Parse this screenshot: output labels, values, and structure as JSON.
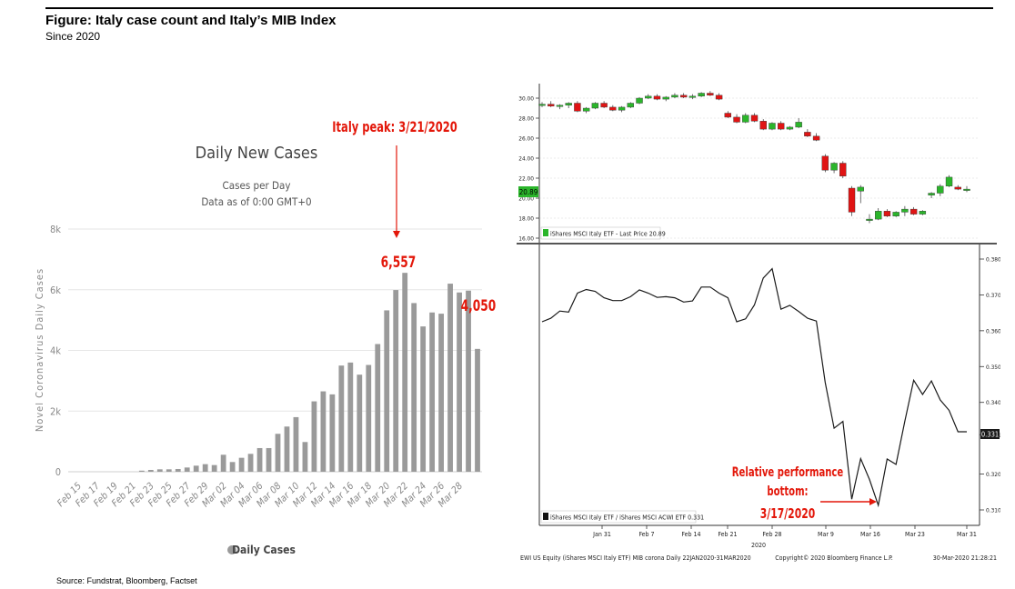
{
  "figure": {
    "title": "Figure: Italy case count and Italy’s MIB Index",
    "subtitle": "Since 2020",
    "source": "Source: Fundstrat, Bloomberg, Factset"
  },
  "chart_data": [
    {
      "type": "bar",
      "title": "Daily New Cases",
      "subtitle_lines": [
        "Cases per Day",
        "Data as of 0:00 GMT+0"
      ],
      "ylabel": "Novel Coronavirus Daily Cases",
      "ylim": [
        0,
        8000
      ],
      "y_ticks": [
        "0",
        "2k",
        "4k",
        "6k",
        "8k"
      ],
      "x_tick_labels": [
        "Feb 15",
        "Feb 17",
        "Feb 19",
        "Feb 21",
        "Feb 23",
        "Feb 25",
        "Feb 27",
        "Feb 29",
        "Mar 02",
        "Mar 04",
        "Mar 06",
        "Mar 08",
        "Mar 10",
        "Mar 12",
        "Mar 14",
        "Mar 16",
        "Mar 18",
        "Mar 20",
        "Mar 22",
        "Mar 24",
        "Mar 26",
        "Mar 28"
      ],
      "legend": "Daily Cases",
      "series": [
        {
          "name": "Daily Cases",
          "color": "#9a9a9a",
          "values": [
            0,
            0,
            0,
            0,
            0,
            0,
            0,
            20,
            60,
            80,
            80,
            90,
            140,
            200,
            250,
            220,
            560,
            320,
            460,
            590,
            780,
            780,
            1250,
            1490,
            1800,
            980,
            2320,
            2650,
            2550,
            3500,
            3600,
            3200,
            3520,
            4210,
            5320,
            5990,
            6557,
            5560,
            4790,
            5250,
            5210,
            6200,
            5910,
            5970,
            4050
          ]
        }
      ],
      "annotations": [
        {
          "text": "Italy peak: 3/21/2020",
          "color": "#e3170a"
        },
        {
          "text": "6,557",
          "color": "#e3170a"
        },
        {
          "text": "4,050",
          "color": "#e3170a"
        }
      ]
    },
    {
      "type": "candlestick",
      "y_ticks": [
        "30.00",
        "28.00",
        "26.00",
        "24.00",
        "22.00",
        "20.00",
        "18.00",
        "16.00"
      ],
      "ylim": [
        16,
        31
      ],
      "last_price_label": "20.89",
      "legend": "iShares MSCI Italy ETF - Last Price 20.89",
      "series": [
        {
          "name": "iShares MSCI Italy ETF",
          "up_color": "#2bb52b",
          "down_color": "#e01414",
          "ohlc": [
            [
              29.3,
              29.6,
              29.1,
              29.4
            ],
            [
              29.4,
              29.7,
              29.1,
              29.2
            ],
            [
              29.2,
              29.4,
              28.9,
              29.3
            ],
            [
              29.3,
              29.6,
              29.0,
              29.5
            ],
            [
              29.5,
              29.7,
              28.6,
              28.7
            ],
            [
              28.7,
              29.1,
              28.5,
              29.0
            ],
            [
              29.0,
              29.6,
              28.9,
              29.5
            ],
            [
              29.5,
              29.7,
              29.0,
              29.1
            ],
            [
              29.1,
              29.3,
              28.7,
              28.8
            ],
            [
              28.8,
              29.2,
              28.6,
              29.1
            ],
            [
              29.1,
              29.6,
              29.0,
              29.5
            ],
            [
              29.5,
              30.1,
              29.4,
              30.0
            ],
            [
              30.0,
              30.4,
              29.9,
              30.2
            ],
            [
              30.2,
              30.4,
              29.8,
              29.9
            ],
            [
              29.9,
              30.2,
              29.7,
              30.1
            ],
            [
              30.1,
              30.5,
              30.0,
              30.3
            ],
            [
              30.3,
              30.5,
              30.0,
              30.1
            ],
            [
              30.1,
              30.4,
              29.9,
              30.2
            ],
            [
              30.2,
              30.6,
              30.1,
              30.5
            ],
            [
              30.5,
              30.7,
              30.2,
              30.3
            ],
            [
              30.3,
              30.5,
              29.8,
              29.9
            ],
            [
              28.5,
              28.7,
              28.0,
              28.1
            ],
            [
              28.1,
              28.4,
              27.5,
              27.6
            ],
            [
              27.6,
              28.5,
              27.5,
              28.3
            ],
            [
              28.3,
              28.5,
              27.6,
              27.7
            ],
            [
              27.7,
              27.9,
              26.8,
              26.9
            ],
            [
              26.9,
              27.6,
              26.8,
              27.5
            ],
            [
              27.5,
              27.7,
              26.8,
              26.9
            ],
            [
              26.9,
              27.2,
              26.8,
              27.1
            ],
            [
              27.1,
              28.0,
              27.0,
              27.6
            ],
            [
              26.6,
              26.9,
              26.1,
              26.2
            ],
            [
              26.2,
              26.5,
              25.7,
              25.8
            ],
            [
              24.2,
              24.4,
              22.6,
              22.8
            ],
            [
              22.8,
              23.6,
              22.5,
              23.5
            ],
            [
              23.5,
              23.7,
              22.0,
              22.2
            ],
            [
              21.0,
              21.2,
              18.2,
              18.6
            ],
            [
              20.7,
              21.3,
              19.5,
              21.1
            ],
            [
              17.8,
              18.4,
              17.5,
              17.9
            ],
            [
              17.9,
              19.0,
              17.8,
              18.7
            ],
            [
              18.7,
              18.9,
              18.1,
              18.2
            ],
            [
              18.2,
              18.7,
              18.1,
              18.6
            ],
            [
              18.6,
              19.2,
              18.2,
              18.9
            ],
            [
              18.9,
              19.1,
              18.3,
              18.4
            ],
            [
              18.4,
              18.8,
              18.3,
              18.7
            ],
            [
              20.3,
              20.6,
              20.0,
              20.5
            ],
            [
              20.5,
              21.4,
              20.2,
              21.2
            ],
            [
              21.2,
              22.3,
              21.1,
              22.1
            ],
            [
              21.1,
              21.3,
              20.8,
              20.9
            ],
            [
              20.9,
              21.2,
              20.6,
              20.9
            ]
          ]
        }
      ]
    },
    {
      "type": "line",
      "y_ticks": [
        "0.380",
        "0.370",
        "0.360",
        "0.350",
        "0.340",
        "0.331",
        "0.320",
        "0.310"
      ],
      "ylim": [
        0.3055,
        0.3815
      ],
      "last_value_label": "0.331",
      "legend": "iShares MSCI Italy ETF / iShares MSCI ACWI ETF 0.331",
      "x_tick_labels": [
        "Jan 31",
        "Feb 7",
        "Feb 14",
        "Feb 21",
        "Feb 28",
        "Mar 9",
        "Mar 16",
        "Mar 23",
        "Mar 31"
      ],
      "x_year": "2020",
      "series": [
        {
          "name": "iShares MSCI Italy ETF / iShares MSCI ACWI ETF",
          "color": "#1a1a1a",
          "values": [
            0.3625,
            0.3635,
            0.3655,
            0.3652,
            0.3705,
            0.3715,
            0.371,
            0.3692,
            0.3684,
            0.3684,
            0.3695,
            0.3714,
            0.3705,
            0.3693,
            0.3695,
            0.3692,
            0.368,
            0.3683,
            0.3722,
            0.3722,
            0.3705,
            0.3692,
            0.3625,
            0.3633,
            0.3672,
            0.3747,
            0.3773,
            0.366,
            0.3671,
            0.3654,
            0.3635,
            0.3627,
            0.3456,
            0.3328,
            0.3347,
            0.313,
            0.3243,
            0.3185,
            0.3113,
            0.3242,
            0.3227,
            0.3348,
            0.3462,
            0.3422,
            0.346,
            0.3407,
            0.3378,
            0.3318,
            0.3318
          ]
        }
      ],
      "annotations": [
        {
          "text_lines": [
            "Relative performance",
            "bottom:",
            "3/17/2020"
          ],
          "color": "#e3170a"
        }
      ]
    }
  ],
  "bloomberg_footer": {
    "left": "EWI US Equity (iShares MSCI Italy ETF) MIB corona  Daily 22JAN2020-31MAR2020",
    "copyright": "Copyright© 2020 Bloomberg Finance L.P.",
    "timestamp": "30-Mar-2020 21:28:21"
  }
}
